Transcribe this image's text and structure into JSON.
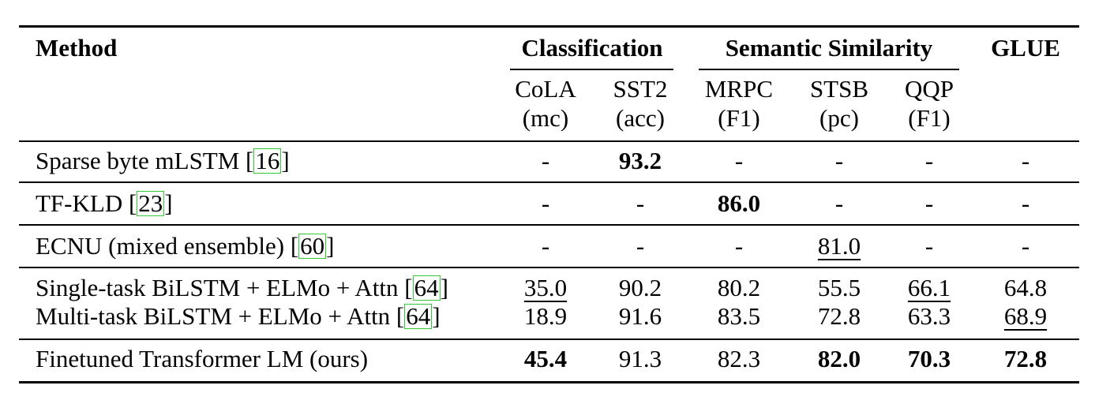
{
  "table": {
    "header": {
      "method": "Method",
      "groups": [
        "Classification",
        "Semantic Similarity",
        "GLUE"
      ],
      "columns": [
        {
          "name": "CoLA",
          "unit": "(mc)"
        },
        {
          "name": "SST2",
          "unit": "(acc)"
        },
        {
          "name": "MRPC",
          "unit": "(F1)"
        },
        {
          "name": "STSB",
          "unit": "(pc)"
        },
        {
          "name": "QQP",
          "unit": "(F1)"
        }
      ]
    },
    "rows": [
      {
        "method": "Sparse byte mLSTM [",
        "cite": "16",
        "close": "]",
        "values": [
          "-",
          "93.2",
          "-",
          "-",
          "-",
          "-"
        ]
      },
      {
        "method": "TF-KLD [",
        "cite": "23",
        "close": "]",
        "values": [
          "-",
          "-",
          "86.0",
          "-",
          "-",
          "-"
        ]
      },
      {
        "method": "ECNU (mixed ensemble) [",
        "cite": "60",
        "close": "]",
        "values": [
          "-",
          "-",
          "-",
          "81.0",
          "-",
          "-"
        ]
      },
      {
        "method": "Single-task BiLSTM + ELMo + Attn [",
        "cite": "64",
        "close": "]",
        "values": [
          "35.0",
          "90.2",
          "80.2",
          "55.5",
          "66.1",
          "64.8"
        ]
      },
      {
        "method": "Multi-task BiLSTM + ELMo + Attn [",
        "cite": "64",
        "close": "]",
        "values": [
          "18.9",
          "91.6",
          "83.5",
          "72.8",
          "63.3",
          "68.9"
        ]
      },
      {
        "method": "Finetuned Transformer LM (ours)",
        "cite": "",
        "close": "",
        "values": [
          "45.4",
          "91.3",
          "82.3",
          "82.0",
          "70.3",
          "72.8"
        ]
      }
    ]
  },
  "colors": {
    "text": "#000000",
    "cite_box": "#35c835"
  }
}
